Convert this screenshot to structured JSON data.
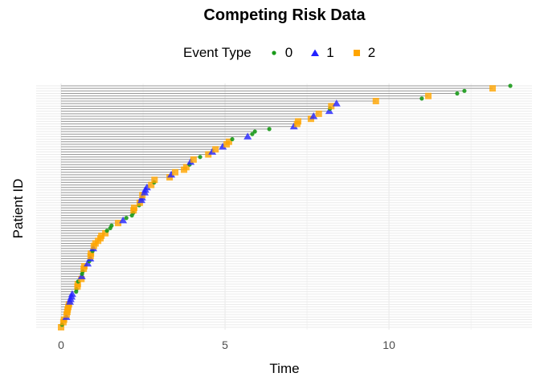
{
  "chart_data": {
    "type": "scatter",
    "title": "Competing Risk Data",
    "xlabel": "Time",
    "ylabel": "Patient ID",
    "xlim": [
      -0.76,
      14.36
    ],
    "xticks": [
      0,
      5,
      10
    ],
    "grid": true,
    "legend": {
      "title": "Event Type",
      "placement": "top",
      "entries": [
        "0",
        "1",
        "2"
      ]
    },
    "colors": {
      "0": "#1a9a1a",
      "1": "#2222ff",
      "2": "#ffa500",
      "segment": "#999999",
      "grid": "#ebebeb"
    },
    "markers": {
      "0": "circle",
      "1": "triangle",
      "2": "square"
    },
    "points": [
      [
        0.0,
        2
      ],
      [
        0.03,
        0
      ],
      [
        0.07,
        2
      ],
      [
        0.09,
        2
      ],
      [
        0.16,
        1
      ],
      [
        0.17,
        2
      ],
      [
        0.19,
        2
      ],
      [
        0.2,
        2
      ],
      [
        0.22,
        2
      ],
      [
        0.24,
        2
      ],
      [
        0.27,
        1
      ],
      [
        0.29,
        1
      ],
      [
        0.32,
        1
      ],
      [
        0.34,
        1
      ],
      [
        0.46,
        0
      ],
      [
        0.47,
        0
      ],
      [
        0.5,
        2
      ],
      [
        0.51,
        2
      ],
      [
        0.52,
        0
      ],
      [
        0.62,
        2
      ],
      [
        0.63,
        1
      ],
      [
        0.64,
        0
      ],
      [
        0.66,
        0
      ],
      [
        0.69,
        2
      ],
      [
        0.71,
        2
      ],
      [
        0.81,
        1
      ],
      [
        0.86,
        0
      ],
      [
        0.89,
        1
      ],
      [
        0.9,
        2
      ],
      [
        0.91,
        2
      ],
      [
        0.96,
        0
      ],
      [
        0.98,
        1
      ],
      [
        1.0,
        2
      ],
      [
        1.05,
        2
      ],
      [
        1.13,
        2
      ],
      [
        1.2,
        2
      ],
      [
        1.23,
        2
      ],
      [
        1.35,
        2
      ],
      [
        1.4,
        0
      ],
      [
        1.5,
        0
      ],
      [
        1.54,
        0
      ],
      [
        1.74,
        2
      ],
      [
        1.89,
        1
      ],
      [
        1.99,
        0
      ],
      [
        2.16,
        0
      ],
      [
        2.2,
        0
      ],
      [
        2.21,
        2
      ],
      [
        2.23,
        2
      ],
      [
        2.38,
        0
      ],
      [
        2.4,
        2
      ],
      [
        2.45,
        1
      ],
      [
        2.47,
        1
      ],
      [
        2.48,
        2
      ],
      [
        2.55,
        1
      ],
      [
        2.57,
        1
      ],
      [
        2.62,
        1
      ],
      [
        2.75,
        2
      ],
      [
        2.84,
        0
      ],
      [
        2.85,
        2
      ],
      [
        3.31,
        2
      ],
      [
        3.36,
        1
      ],
      [
        3.48,
        2
      ],
      [
        3.75,
        2
      ],
      [
        3.82,
        2
      ],
      [
        3.92,
        0
      ],
      [
        3.95,
        1
      ],
      [
        4.04,
        2
      ],
      [
        4.24,
        0
      ],
      [
        4.49,
        2
      ],
      [
        4.61,
        1
      ],
      [
        4.71,
        2
      ],
      [
        4.93,
        1
      ],
      [
        5.05,
        2
      ],
      [
        5.12,
        2
      ],
      [
        5.22,
        0
      ],
      [
        5.69,
        1
      ],
      [
        5.83,
        0
      ],
      [
        5.91,
        0
      ],
      [
        6.35,
        0
      ],
      [
        7.1,
        1
      ],
      [
        7.2,
        2
      ],
      [
        7.23,
        2
      ],
      [
        7.62,
        2
      ],
      [
        7.7,
        1
      ],
      [
        7.86,
        2
      ],
      [
        8.18,
        1
      ],
      [
        8.2,
        0
      ],
      [
        8.24,
        2
      ],
      [
        8.4,
        1
      ],
      [
        9.6,
        2
      ],
      [
        11.0,
        0
      ],
      [
        11.2,
        2
      ],
      [
        12.08,
        0
      ],
      [
        12.3,
        0
      ],
      [
        13.16,
        2
      ],
      [
        13.7,
        0
      ]
    ]
  }
}
